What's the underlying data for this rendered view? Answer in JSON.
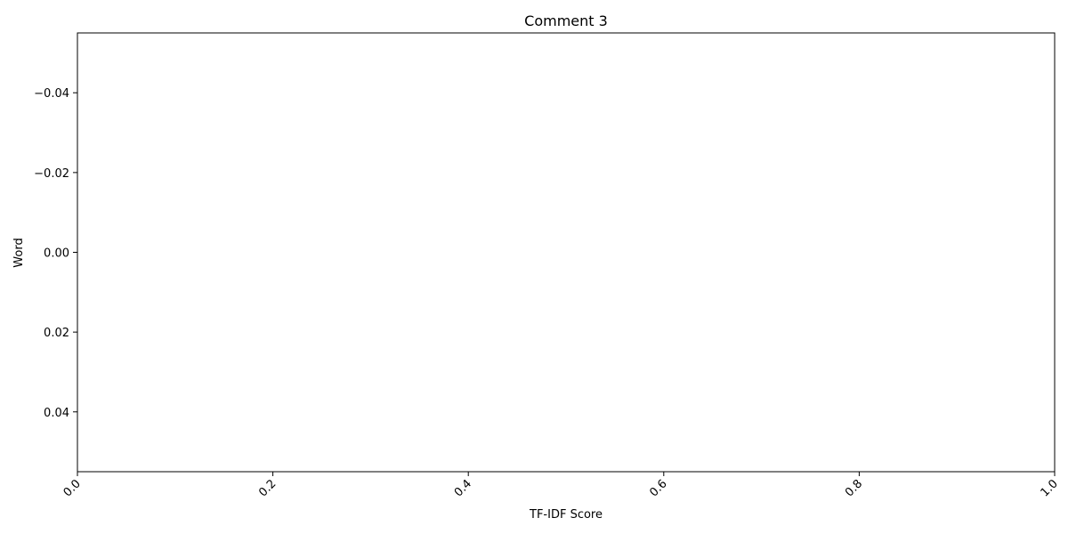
{
  "chart_data": {
    "type": "bar",
    "orientation": "horizontal",
    "title": "Comment 3",
    "xlabel": "TF-IDF Score",
    "ylabel": "Word",
    "categories": [],
    "values": [],
    "xlim": [
      0.0,
      1.0
    ],
    "ylim": [
      -0.055,
      0.055
    ],
    "x_ticks": [
      "0.0",
      "0.2",
      "0.4",
      "0.6",
      "0.8",
      "1.0"
    ],
    "y_ticks": [
      "−0.04",
      "−0.02",
      "0.00",
      "0.02",
      "0.04"
    ],
    "x_tick_values": [
      0.0,
      0.2,
      0.4,
      0.6,
      0.8,
      1.0
    ],
    "y_tick_values": [
      -0.04,
      -0.02,
      0.0,
      0.02,
      0.04
    ],
    "y_inverted": true,
    "x_tick_rotation": "45deg",
    "grid": false,
    "legend": "none"
  }
}
